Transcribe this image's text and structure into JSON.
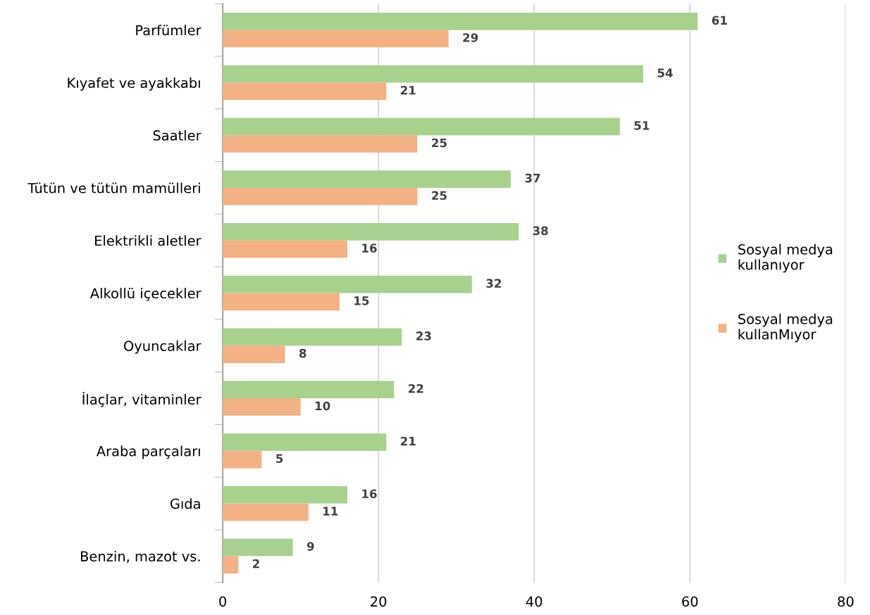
{
  "chart_data": {
    "type": "bar",
    "orientation": "horizontal",
    "categories": [
      "Parfümler",
      "Kıyafet ve ayakkabı",
      "Saatler",
      "Tütün ve tütün mamülleri",
      "Elektrikli aletler",
      "Alkollü içecekler",
      "Oyuncaklar",
      "İlaçlar, vitaminler",
      "Araba parçaları",
      "Gıda",
      "Benzin, mazot vs."
    ],
    "series": [
      {
        "name": "Sosyal medya\nkullanıyor",
        "color": "#a9d18e",
        "values": [
          61,
          54,
          51,
          37,
          38,
          32,
          23,
          22,
          21,
          16,
          9
        ]
      },
      {
        "name": "Sosyal medya\nkullanMıyor",
        "color": "#f4b183",
        "values": [
          29,
          21,
          25,
          25,
          16,
          15,
          8,
          10,
          5,
          11,
          2
        ]
      }
    ],
    "xlim": [
      0,
      80
    ],
    "xticks": [
      0,
      20,
      40,
      60,
      80
    ],
    "grid": "x",
    "legend": "right",
    "data_labels": true
  }
}
